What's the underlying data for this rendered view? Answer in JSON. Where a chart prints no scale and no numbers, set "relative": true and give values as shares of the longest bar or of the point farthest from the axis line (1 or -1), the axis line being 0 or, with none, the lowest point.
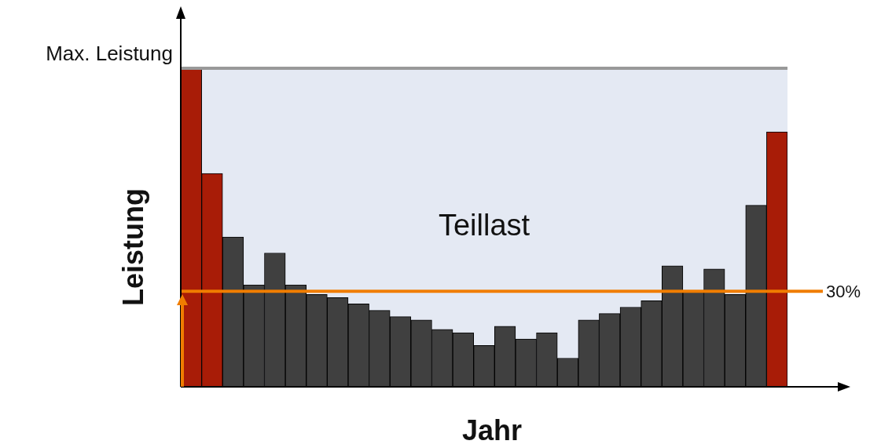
{
  "chart_data": {
    "type": "bar",
    "xlabel": "Jahr",
    "ylabel": "Leistung",
    "relative": true,
    "categories": [
      null,
      null,
      null,
      null,
      null,
      null,
      null,
      null,
      null,
      null,
      null,
      null,
      null,
      null,
      null,
      null,
      null,
      null,
      null,
      null,
      null,
      null,
      null,
      null,
      null,
      null,
      null,
      null,
      null
    ],
    "values": [
      1,
      0.67,
      0.47,
      0.32,
      0.42,
      0.32,
      0.29,
      0.28,
      0.26,
      0.24,
      0.22,
      0.21,
      0.18,
      0.17,
      0.13,
      0.19,
      0.15,
      0.17,
      0.09,
      0.21,
      0.23,
      0.25,
      0.27,
      0.38,
      0.3,
      0.37,
      0.29,
      0.57,
      0.8
    ],
    "colors": [
      "#a81c07",
      "#a81c07",
      "#404040",
      "#404040",
      "#404040",
      "#404040",
      "#404040",
      "#404040",
      "#404040",
      "#404040",
      "#404040",
      "#404040",
      "#404040",
      "#404040",
      "#404040",
      "#404040",
      "#404040",
      "#404040",
      "#404040",
      "#404040",
      "#404040",
      "#404040",
      "#404040",
      "#404040",
      "#404040",
      "#404040",
      "#404040",
      "#404040",
      "#a81c07"
    ],
    "bands": [
      {
        "axis": "y",
        "from": 0,
        "to": 1,
        "label": "Teillast",
        "color": "#e4e9f3"
      }
    ],
    "ref_lines": [
      {
        "axis": "y",
        "value": 1,
        "label": "Max. Leistung",
        "color": "#999999"
      },
      {
        "axis": "y",
        "value": 0.3,
        "label": "30%",
        "color": "#f07d00"
      }
    ]
  }
}
